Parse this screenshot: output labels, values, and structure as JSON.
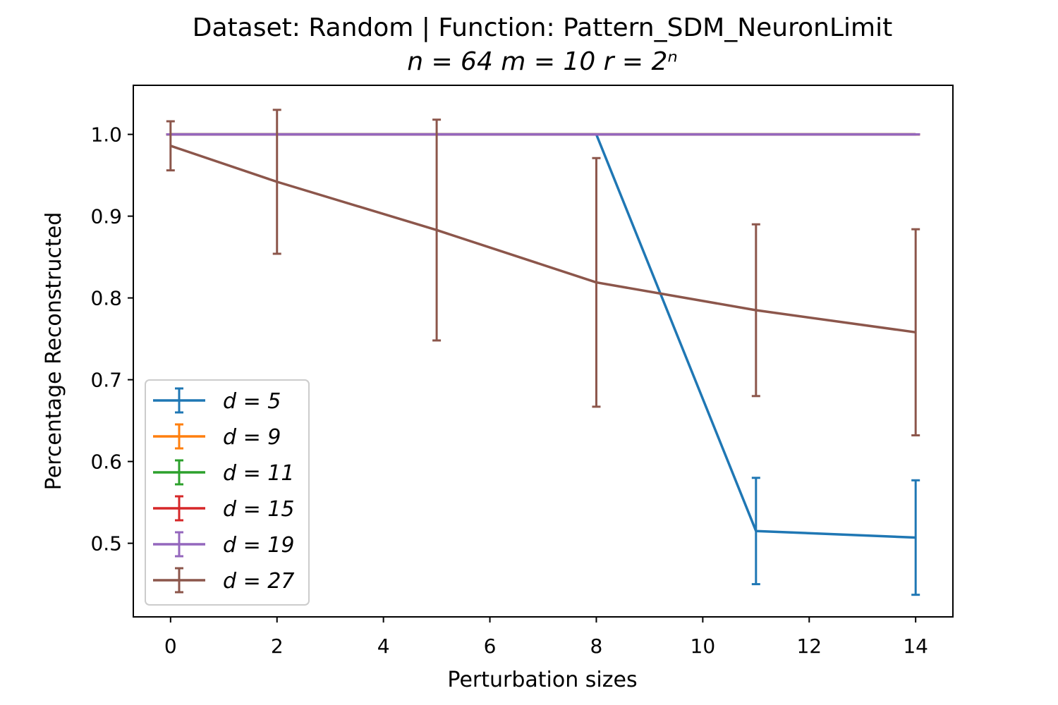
{
  "chart_data": {
    "type": "line",
    "title": "Dataset: Random | Function: Pattern_SDM_NeuronLimit",
    "subtitle": "n = 64  m = 10  r = 2ⁿ",
    "xlabel": "Perturbation sizes",
    "ylabel": "Percentage Reconstructed",
    "xlim": [
      -0.7,
      14.7
    ],
    "ylim": [
      0.41,
      1.06
    ],
    "xticks": [
      0,
      2,
      4,
      6,
      8,
      10,
      12,
      14
    ],
    "yticks": [
      0.5,
      0.6,
      0.7,
      0.8,
      0.9,
      1.0
    ],
    "xtick_labels": [
      "0",
      "2",
      "4",
      "6",
      "8",
      "10",
      "12",
      "14"
    ],
    "ytick_labels": [
      "0.5",
      "0.6",
      "0.7",
      "0.8",
      "0.9",
      "1.0"
    ],
    "grid": false,
    "legend_position": "lower-left",
    "x": [
      0,
      2,
      5,
      8,
      11,
      14
    ],
    "series": [
      {
        "name": "d = 5",
        "color": "#1f77b4",
        "values": [
          1.0,
          1.0,
          1.0,
          1.0,
          0.515,
          0.507
        ],
        "errors": [
          0,
          0,
          0,
          0,
          0.065,
          0.07
        ]
      },
      {
        "name": "d = 9",
        "color": "#ff7f0e",
        "values": [
          1.0,
          1.0,
          1.0,
          1.0,
          1.0,
          1.0
        ],
        "errors": [
          0,
          0,
          0,
          0,
          0,
          0
        ]
      },
      {
        "name": "d = 11",
        "color": "#2ca02c",
        "values": [
          1.0,
          1.0,
          1.0,
          1.0,
          1.0,
          1.0
        ],
        "errors": [
          0,
          0,
          0,
          0,
          0,
          0
        ]
      },
      {
        "name": "d = 15",
        "color": "#d62728",
        "values": [
          1.0,
          1.0,
          1.0,
          1.0,
          1.0,
          1.0
        ],
        "errors": [
          0,
          0,
          0,
          0,
          0,
          0
        ]
      },
      {
        "name": "d = 19",
        "color": "#9467bd",
        "values": [
          1.0,
          1.0,
          1.0,
          1.0,
          1.0,
          1.0
        ],
        "errors": [
          0,
          0,
          0,
          0,
          0,
          0
        ]
      },
      {
        "name": "d = 27",
        "color": "#8c564b",
        "values": [
          0.986,
          0.942,
          0.883,
          0.819,
          0.785,
          0.758
        ],
        "errors": [
          0.03,
          0.088,
          0.135,
          0.152,
          0.105,
          0.126
        ]
      }
    ]
  }
}
